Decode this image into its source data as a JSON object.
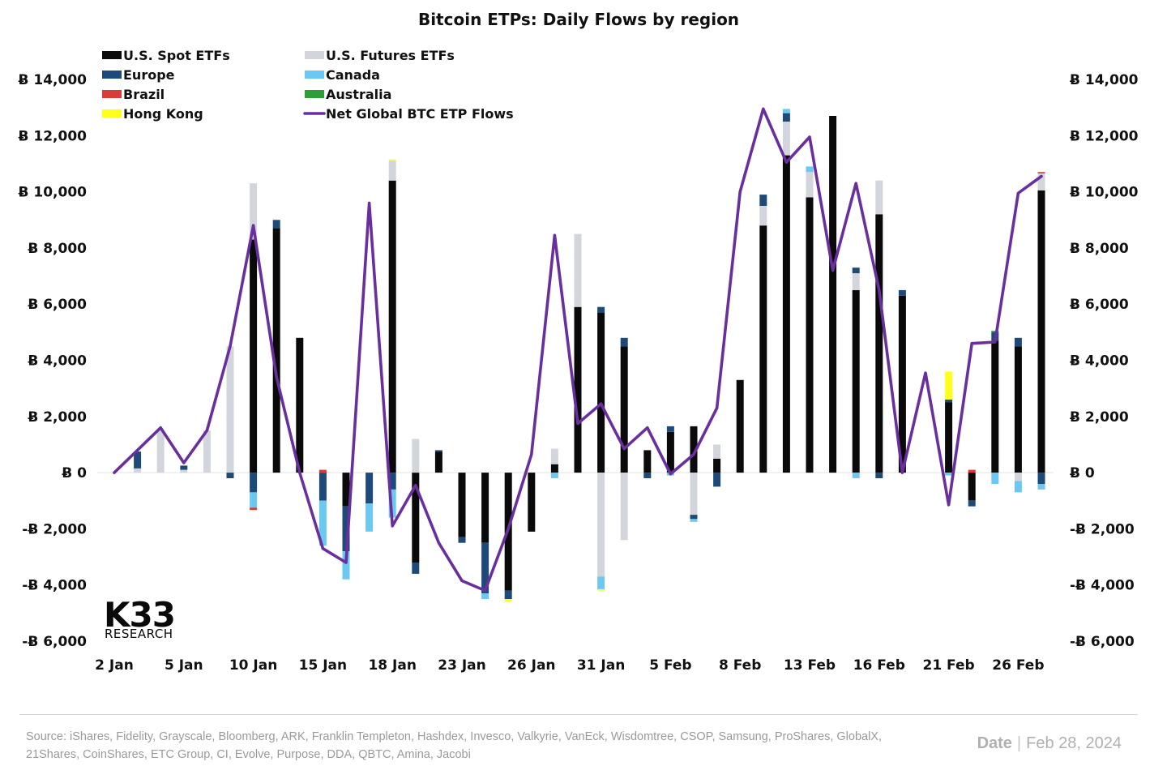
{
  "chart_data": {
    "type": "bar",
    "title": "Bitcoin ETPs: Daily Flows by region",
    "stacked": true,
    "ylim": [
      -6000,
      14000
    ],
    "yticks": [
      -6000,
      -4000,
      -2000,
      0,
      2000,
      4000,
      6000,
      8000,
      10000,
      12000,
      14000
    ],
    "ytick_labels": [
      "-Ƀ 6,000",
      "-Ƀ 4,000",
      "-Ƀ 2,000",
      "Ƀ 0",
      "Ƀ 2,000",
      "Ƀ 4,000",
      "Ƀ 6,000",
      "Ƀ 8,000",
      "Ƀ 10,000",
      "Ƀ 12,000",
      "Ƀ 14,000"
    ],
    "xtick_labels": [
      "2 Jan",
      "5 Jan",
      "10 Jan",
      "15 Jan",
      "18 Jan",
      "23 Jan",
      "26 Jan",
      "31 Jan",
      "5 Feb",
      "8 Feb",
      "13 Feb",
      "16 Feb",
      "21 Feb",
      "26 Feb"
    ],
    "xtick_positions": [
      0,
      3,
      6,
      9,
      12,
      15,
      18,
      21,
      24,
      27,
      30,
      33,
      36,
      39
    ],
    "n_categories": 41,
    "legend_position": "top-left",
    "series": [
      {
        "name": "U.S. Spot ETFs",
        "color": "#0a0a0a",
        "values": [
          0,
          0,
          0,
          0,
          0,
          0,
          8300,
          8700,
          4800,
          0,
          -1200,
          0,
          10400,
          -3200,
          750,
          -2300,
          -2500,
          -4200,
          -2100,
          300,
          5900,
          5700,
          4500,
          800,
          1450,
          1650,
          500,
          3300,
          8800,
          11300,
          9800,
          12700,
          6500,
          9200,
          6300,
          0,
          2500,
          -1000,
          4700,
          4500,
          10050
        ]
      },
      {
        "name": "U.S. Futures ETFs",
        "color": "#d2d5db",
        "values": [
          0,
          150,
          1500,
          100,
          1500,
          4500,
          2000,
          0,
          0,
          0,
          0,
          0,
          700,
          1200,
          0,
          0,
          0,
          0,
          0,
          550,
          2600,
          -3700,
          -2400,
          0,
          0,
          -1500,
          500,
          0,
          700,
          1200,
          900,
          0,
          600,
          1200,
          0,
          0,
          0,
          0,
          0,
          -300,
          600
        ]
      },
      {
        "name": "Europe",
        "color": "#1e4a7a",
        "values": [
          0,
          600,
          0,
          150,
          0,
          -200,
          -700,
          300,
          0,
          -1000,
          -1600,
          -1100,
          -600,
          -400,
          50,
          -200,
          -1800,
          -300,
          0,
          0,
          0,
          200,
          300,
          -200,
          200,
          -150,
          -500,
          0,
          400,
          300,
          0,
          0,
          200,
          -200,
          200,
          0,
          100,
          -200,
          300,
          300,
          -400
        ]
      },
      {
        "name": "Canada",
        "color": "#6bc8f0",
        "values": [
          0,
          0,
          0,
          0,
          0,
          0,
          -550,
          0,
          0,
          -1600,
          -1000,
          -1000,
          -1000,
          0,
          0,
          0,
          -200,
          0,
          0,
          -200,
          0,
          -450,
          0,
          0,
          -100,
          -100,
          0,
          0,
          0,
          150,
          200,
          0,
          -200,
          0,
          0,
          0,
          -100,
          0,
          -400,
          -400,
          -200
        ]
      },
      {
        "name": "Brazil",
        "color": "#d93a3a",
        "values": [
          0,
          0,
          0,
          0,
          0,
          0,
          -80,
          0,
          0,
          100,
          0,
          0,
          0,
          0,
          0,
          0,
          0,
          0,
          0,
          0,
          0,
          0,
          0,
          0,
          0,
          0,
          0,
          0,
          0,
          0,
          0,
          0,
          0,
          0,
          0,
          0,
          0,
          100,
          0,
          0,
          50
        ]
      },
      {
        "name": "Australia",
        "color": "#2e9e3a",
        "values": [
          0,
          0,
          0,
          0,
          0,
          0,
          0,
          0,
          0,
          0,
          0,
          0,
          0,
          0,
          0,
          0,
          0,
          0,
          0,
          0,
          0,
          0,
          0,
          0,
          0,
          0,
          0,
          0,
          0,
          0,
          0,
          0,
          0,
          0,
          0,
          0,
          0,
          0,
          50,
          0,
          0
        ]
      },
      {
        "name": "Hong Kong",
        "color": "#ffff1a",
        "values": [
          0,
          0,
          0,
          0,
          0,
          0,
          0,
          0,
          0,
          0,
          0,
          0,
          50,
          0,
          0,
          0,
          0,
          -100,
          0,
          0,
          0,
          -50,
          0,
          0,
          0,
          0,
          0,
          0,
          0,
          0,
          0,
          0,
          0,
          0,
          0,
          0,
          1000,
          0,
          0,
          0,
          0
        ]
      }
    ],
    "line_series": {
      "name": "Net Global BTC ETP Flows",
      "color": "#6a2f9e",
      "values": [
        0,
        800,
        1600,
        350,
        1500,
        4500,
        8800,
        3400,
        0,
        -2700,
        -3200,
        9600,
        -1900,
        -450,
        -2500,
        -3850,
        -4200,
        -2000,
        650,
        8450,
        1750,
        2450,
        850,
        1600,
        -50,
        650,
        2300,
        10000,
        12950,
        11050,
        11950,
        7200,
        10300,
        6500,
        0,
        3550,
        -1150,
        4600,
        4650,
        9950,
        10550
      ]
    },
    "legend": [
      "U.S. Spot ETFs",
      "U.S. Futures ETFs",
      "Europe",
      "Canada",
      "Brazil",
      "Australia",
      "Hong Kong",
      "Net Global BTC ETP Flows"
    ]
  },
  "logo": {
    "line1": "K33",
    "line2": "RESEARCH"
  },
  "footer": {
    "source_text": "Source:  iShares, Fidelity, Grayscale, Bloomberg, ARK, Franklin Templeton, Hashdex, Invesco, Valkyrie, VanEck, Wisdomtree, CSOP, Samsung, ProShares, GlobalX, 21Shares, CoinShares, ETC Group, CI, Evolve, Purpose, DDA, QBTC, Amina, Jacobi",
    "date_label": "Date",
    "date_separator": "|",
    "date_value": "Feb 28, 2024"
  }
}
